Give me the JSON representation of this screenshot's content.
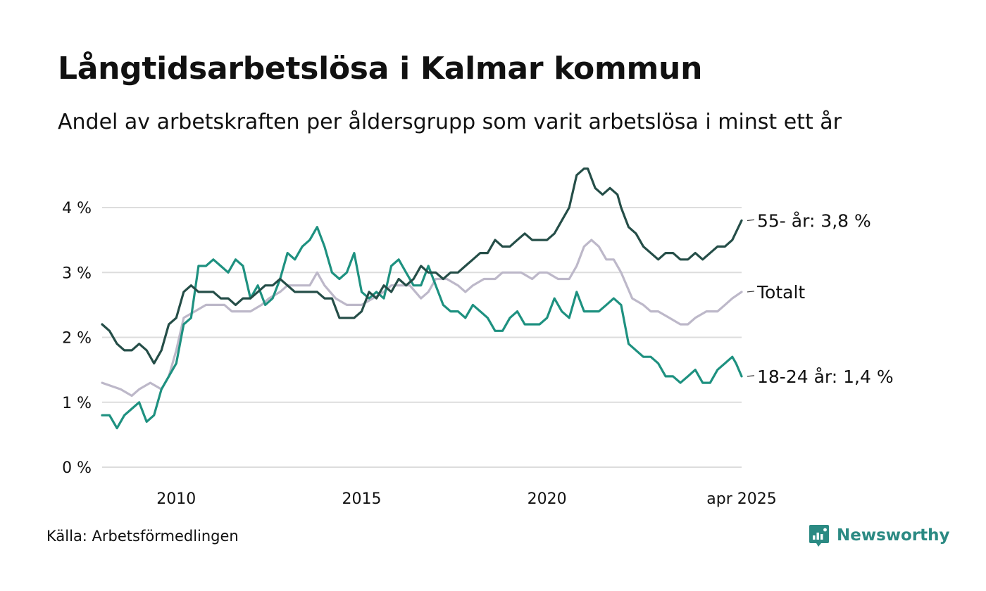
{
  "title": "Långtidsarbetslösa i Kalmar kommun",
  "subtitle": "Andel av arbetskraften per åldersgrupp som varit arbetslösa i minst ett år",
  "source": "Källa: Arbetsförmedlingen",
  "brand": "Newsworthy",
  "colors": {
    "s55": "#254e48",
    "total": "#bdb8c9",
    "s18": "#1e9180",
    "grid": "#dddddd",
    "brand": "#2b8a83"
  },
  "chart_data": {
    "type": "line",
    "x_range": [
      2008.0,
      2025.25
    ],
    "ylim": [
      0,
      4.6
    ],
    "y_ticks": [
      {
        "value": 0,
        "label": "0 %"
      },
      {
        "value": 1,
        "label": "1 %"
      },
      {
        "value": 2,
        "label": "2 %"
      },
      {
        "value": 3,
        "label": "3 %"
      },
      {
        "value": 4,
        "label": "4 %"
      }
    ],
    "x_ticks": [
      {
        "value": 2010,
        "label": "2010"
      },
      {
        "value": 2015,
        "label": "2015"
      },
      {
        "value": 2020,
        "label": "2020"
      },
      {
        "value": 2025.25,
        "label": "apr 2025"
      }
    ],
    "grid": true,
    "series": [
      {
        "key": "total",
        "label": "Totalt",
        "color": "#bdb8c9",
        "x": [
          2008.0,
          2008.5,
          2008.8,
          2009.0,
          2009.3,
          2009.6,
          2009.8,
          2010.0,
          2010.2,
          2010.5,
          2010.8,
          2011.0,
          2011.3,
          2011.5,
          2011.8,
          2012.0,
          2012.3,
          2012.5,
          2012.8,
          2013.0,
          2013.3,
          2013.6,
          2013.8,
          2014.0,
          2014.3,
          2014.6,
          2014.8,
          2015.0,
          2015.3,
          2015.6,
          2015.8,
          2016.0,
          2016.3,
          2016.6,
          2016.8,
          2017.0,
          2017.3,
          2017.6,
          2017.8,
          2018.0,
          2018.3,
          2018.6,
          2018.8,
          2019.0,
          2019.3,
          2019.6,
          2019.8,
          2020.0,
          2020.3,
          2020.6,
          2020.8,
          2021.0,
          2021.2,
          2021.4,
          2021.6,
          2021.8,
          2022.0,
          2022.3,
          2022.6,
          2022.8,
          2023.0,
          2023.3,
          2023.6,
          2023.8,
          2024.0,
          2024.3,
          2024.6,
          2024.8,
          2025.0,
          2025.25
        ],
        "y": [
          1.3,
          1.2,
          1.1,
          1.2,
          1.3,
          1.2,
          1.4,
          1.8,
          2.3,
          2.4,
          2.5,
          2.5,
          2.5,
          2.4,
          2.4,
          2.4,
          2.5,
          2.6,
          2.7,
          2.8,
          2.8,
          2.8,
          3.0,
          2.8,
          2.6,
          2.5,
          2.5,
          2.5,
          2.6,
          2.7,
          2.8,
          2.8,
          2.8,
          2.6,
          2.7,
          2.9,
          2.9,
          2.8,
          2.7,
          2.8,
          2.9,
          2.9,
          3.0,
          3.0,
          3.0,
          2.9,
          3.0,
          3.0,
          2.9,
          2.9,
          3.1,
          3.4,
          3.5,
          3.4,
          3.2,
          3.2,
          3.0,
          2.6,
          2.5,
          2.4,
          2.4,
          2.3,
          2.2,
          2.2,
          2.3,
          2.4,
          2.4,
          2.5,
          2.6,
          2.7
        ]
      },
      {
        "key": "s18",
        "label": "18-24 år: 1,4 %",
        "color": "#1e9180",
        "x": [
          2008.0,
          2008.2,
          2008.4,
          2008.6,
          2008.8,
          2009.0,
          2009.2,
          2009.4,
          2009.6,
          2009.8,
          2010.0,
          2010.2,
          2010.4,
          2010.6,
          2010.8,
          2011.0,
          2011.2,
          2011.4,
          2011.6,
          2011.8,
          2012.0,
          2012.2,
          2012.4,
          2012.6,
          2012.8,
          2013.0,
          2013.2,
          2013.4,
          2013.6,
          2013.8,
          2014.0,
          2014.2,
          2014.4,
          2014.6,
          2014.8,
          2015.0,
          2015.2,
          2015.4,
          2015.6,
          2015.8,
          2016.0,
          2016.2,
          2016.4,
          2016.6,
          2016.8,
          2017.0,
          2017.2,
          2017.4,
          2017.6,
          2017.8,
          2018.0,
          2018.2,
          2018.4,
          2018.6,
          2018.8,
          2019.0,
          2019.2,
          2019.4,
          2019.6,
          2019.8,
          2020.0,
          2020.2,
          2020.4,
          2020.6,
          2020.8,
          2021.0,
          2021.2,
          2021.4,
          2021.6,
          2021.8,
          2022.0,
          2022.2,
          2022.4,
          2022.6,
          2022.8,
          2023.0,
          2023.2,
          2023.4,
          2023.6,
          2023.8,
          2024.0,
          2024.2,
          2024.4,
          2024.6,
          2024.8,
          2025.0,
          2025.1,
          2025.25
        ],
        "y": [
          0.8,
          0.8,
          0.6,
          0.8,
          0.9,
          1.0,
          0.7,
          0.8,
          1.2,
          1.4,
          1.6,
          2.2,
          2.3,
          3.1,
          3.1,
          3.2,
          3.1,
          3.0,
          3.2,
          3.1,
          2.6,
          2.8,
          2.5,
          2.6,
          2.9,
          3.3,
          3.2,
          3.4,
          3.5,
          3.7,
          3.4,
          3.0,
          2.9,
          3.0,
          3.3,
          2.7,
          2.6,
          2.7,
          2.6,
          3.1,
          3.2,
          3.0,
          2.8,
          2.8,
          3.1,
          2.8,
          2.5,
          2.4,
          2.4,
          2.3,
          2.5,
          2.4,
          2.3,
          2.1,
          2.1,
          2.3,
          2.4,
          2.2,
          2.2,
          2.2,
          2.3,
          2.6,
          2.4,
          2.3,
          2.7,
          2.4,
          2.4,
          2.4,
          2.5,
          2.6,
          2.5,
          1.9,
          1.8,
          1.7,
          1.7,
          1.6,
          1.4,
          1.4,
          1.3,
          1.4,
          1.5,
          1.3,
          1.3,
          1.5,
          1.6,
          1.7,
          1.6,
          1.4
        ]
      },
      {
        "key": "s55",
        "label": "55- år: 3,8 %",
        "color": "#254e48",
        "x": [
          2008.0,
          2008.2,
          2008.4,
          2008.6,
          2008.8,
          2009.0,
          2009.2,
          2009.4,
          2009.6,
          2009.8,
          2010.0,
          2010.2,
          2010.4,
          2010.6,
          2010.8,
          2011.0,
          2011.2,
          2011.4,
          2011.6,
          2011.8,
          2012.0,
          2012.2,
          2012.4,
          2012.6,
          2012.8,
          2013.0,
          2013.2,
          2013.4,
          2013.6,
          2013.8,
          2014.0,
          2014.2,
          2014.4,
          2014.6,
          2014.8,
          2015.0,
          2015.2,
          2015.4,
          2015.6,
          2015.8,
          2016.0,
          2016.2,
          2016.4,
          2016.6,
          2016.8,
          2017.0,
          2017.2,
          2017.4,
          2017.6,
          2017.8,
          2018.0,
          2018.2,
          2018.4,
          2018.6,
          2018.8,
          2019.0,
          2019.2,
          2019.4,
          2019.6,
          2019.8,
          2020.0,
          2020.2,
          2020.4,
          2020.6,
          2020.8,
          2021.0,
          2021.1,
          2021.3,
          2021.5,
          2021.7,
          2021.9,
          2022.0,
          2022.2,
          2022.4,
          2022.6,
          2022.8,
          2023.0,
          2023.2,
          2023.4,
          2023.6,
          2023.8,
          2024.0,
          2024.2,
          2024.4,
          2024.6,
          2024.8,
          2025.0,
          2025.25
        ],
        "y": [
          2.2,
          2.1,
          1.9,
          1.8,
          1.8,
          1.9,
          1.8,
          1.6,
          1.8,
          2.2,
          2.3,
          2.7,
          2.8,
          2.7,
          2.7,
          2.7,
          2.6,
          2.6,
          2.5,
          2.6,
          2.6,
          2.7,
          2.8,
          2.8,
          2.9,
          2.8,
          2.7,
          2.7,
          2.7,
          2.7,
          2.6,
          2.6,
          2.3,
          2.3,
          2.3,
          2.4,
          2.7,
          2.6,
          2.8,
          2.7,
          2.9,
          2.8,
          2.9,
          3.1,
          3.0,
          3.0,
          2.9,
          3.0,
          3.0,
          3.1,
          3.2,
          3.3,
          3.3,
          3.5,
          3.4,
          3.4,
          3.5,
          3.6,
          3.5,
          3.5,
          3.5,
          3.6,
          3.8,
          4.0,
          4.5,
          4.6,
          4.6,
          4.3,
          4.2,
          4.3,
          4.2,
          4.0,
          3.7,
          3.6,
          3.4,
          3.3,
          3.2,
          3.3,
          3.3,
          3.2,
          3.2,
          3.3,
          3.2,
          3.3,
          3.4,
          3.4,
          3.5,
          3.8
        ]
      }
    ]
  }
}
